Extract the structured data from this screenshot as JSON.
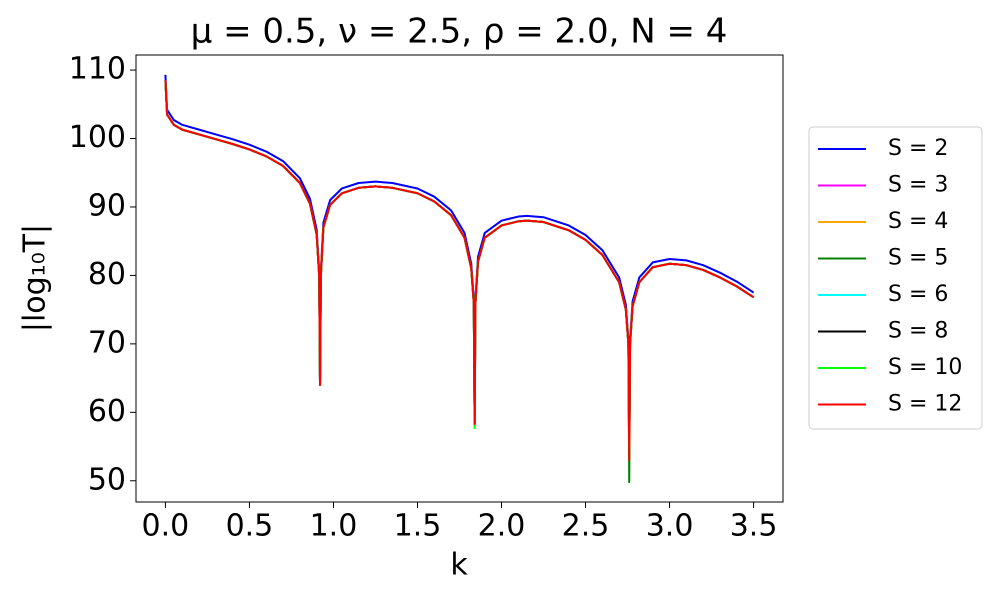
{
  "chart_data": {
    "type": "line",
    "title": "μ = 0.5, ν = 2.5, ρ = 2.0, N = 4",
    "x_label": "k",
    "y_label": "|log₁₀T|",
    "x": [
      0,
      0.01,
      0.05,
      0.1,
      0.2,
      0.3,
      0.4,
      0.5,
      0.6,
      0.7,
      0.8,
      0.86,
      0.9,
      0.915,
      0.92,
      0.925,
      0.94,
      0.98,
      1.05,
      1.15,
      1.25,
      1.35,
      1.5,
      1.6,
      1.7,
      1.78,
      1.82,
      1.835,
      1.84,
      1.845,
      1.86,
      1.9,
      2.0,
      2.1,
      2.15,
      2.25,
      2.4,
      2.5,
      2.6,
      2.7,
      2.74,
      2.755,
      2.76,
      2.765,
      2.78,
      2.82,
      2.9,
      3.0,
      3.1,
      3.2,
      3.3,
      3.4,
      3.5
    ],
    "series": [
      {
        "name": "S = 2",
        "color": "#0000ff",
        "values": [
          109.3,
          104.2,
          102.7,
          102,
          101.3,
          100.6,
          99.9,
          99.1,
          98.1,
          96.7,
          94.2,
          91.2,
          86.7,
          80.7,
          64.3,
          80.7,
          87.7,
          91,
          92.7,
          93.5,
          93.7,
          93.5,
          92.7,
          91.5,
          89.5,
          86.2,
          81.7,
          76.7,
          58.5,
          76.7,
          82.7,
          86.2,
          88,
          88.6,
          88.7,
          88.5,
          87.3,
          85.9,
          83.7,
          79.7,
          75.7,
          70.7,
          53.5,
          70.7,
          76.2,
          79.7,
          81.9,
          82.4,
          82.2,
          81.5,
          80.4,
          79.1,
          77.5
        ]
      },
      {
        "name": "S = 3",
        "color": "#ff00ff",
        "values": [
          108.5,
          103.5,
          102,
          101.3,
          100.6,
          99.9,
          99.2,
          98.4,
          97.4,
          96,
          93.5,
          90.5,
          86,
          80,
          64,
          80,
          87,
          90.3,
          92,
          92.8,
          93,
          92.8,
          92,
          90.8,
          88.8,
          85.5,
          81,
          76,
          58.3,
          76,
          82,
          85.5,
          87.3,
          87.9,
          88,
          87.8,
          86.6,
          85.2,
          83,
          79,
          75,
          70,
          53,
          70,
          75.5,
          79,
          81.2,
          81.7,
          81.5,
          80.8,
          79.7,
          78.4,
          76.8
        ]
      },
      {
        "name": "S = 4",
        "color": "#ffa500",
        "values": [
          108.5,
          103.5,
          102,
          101.3,
          100.6,
          99.9,
          99.2,
          98.4,
          97.4,
          96,
          93.5,
          90.5,
          86,
          80,
          64,
          80,
          87,
          90.3,
          92,
          92.8,
          93,
          92.8,
          92,
          90.8,
          88.8,
          85.5,
          81,
          76,
          58.3,
          76,
          82,
          85.5,
          87.3,
          87.9,
          88,
          87.8,
          86.6,
          85.2,
          83,
          79,
          75,
          70,
          53,
          70,
          75.5,
          79,
          81.2,
          81.7,
          81.5,
          80.8,
          79.7,
          78.4,
          76.8
        ]
      },
      {
        "name": "S = 5",
        "color": "#008000",
        "values": [
          108.5,
          103.5,
          102,
          101.3,
          100.6,
          99.9,
          99.2,
          98.4,
          97.4,
          96,
          93.5,
          90.5,
          86,
          80,
          64,
          80,
          87,
          90.3,
          92,
          92.8,
          93,
          92.8,
          92,
          90.8,
          88.8,
          85.5,
          81,
          76,
          58.3,
          76,
          82,
          85.5,
          87.3,
          87.9,
          88,
          87.8,
          86.6,
          85.2,
          83,
          79,
          75,
          70,
          49.8,
          70,
          75.5,
          79,
          81.2,
          81.7,
          81.5,
          80.8,
          79.7,
          78.4,
          76.8
        ]
      },
      {
        "name": "S = 6",
        "color": "#00ffff",
        "values": [
          108.5,
          103.5,
          102,
          101.3,
          100.6,
          99.9,
          99.2,
          98.4,
          97.4,
          96,
          93.5,
          90.5,
          86,
          80,
          64,
          80,
          87,
          90.3,
          92,
          92.8,
          93,
          92.8,
          92,
          90.8,
          88.8,
          85.5,
          81,
          76,
          58.3,
          76,
          82,
          85.5,
          87.3,
          87.9,
          88,
          87.8,
          86.6,
          85.2,
          83,
          79,
          75,
          70,
          53,
          70,
          75.5,
          79,
          81.2,
          81.7,
          81.5,
          80.8,
          79.7,
          78.4,
          76.8
        ]
      },
      {
        "name": "S = 8",
        "color": "#000000",
        "values": [
          108.5,
          103.5,
          102,
          101.3,
          100.6,
          99.9,
          99.2,
          98.4,
          97.4,
          96,
          93.5,
          90.5,
          86,
          80,
          64,
          80,
          87,
          90.3,
          92,
          92.8,
          93,
          92.8,
          92,
          90.8,
          88.8,
          85.5,
          81,
          76,
          58.3,
          76,
          82,
          85.5,
          87.3,
          87.9,
          88,
          87.8,
          86.6,
          85.2,
          83,
          79,
          75,
          70,
          53,
          70,
          75.5,
          79,
          81.2,
          81.7,
          81.5,
          80.8,
          79.7,
          78.4,
          76.8
        ]
      },
      {
        "name": "S = 10",
        "color": "#00ff00",
        "values": [
          108.5,
          103.5,
          102,
          101.3,
          100.6,
          99.9,
          99.2,
          98.4,
          97.4,
          96,
          93.5,
          90.5,
          86,
          80,
          64,
          80,
          87,
          90.3,
          92,
          92.8,
          93,
          92.8,
          92,
          90.8,
          88.8,
          85.5,
          81,
          76,
          57.7,
          76,
          82,
          85.5,
          87.3,
          87.9,
          88,
          87.8,
          86.6,
          85.2,
          83,
          79,
          75,
          70,
          53,
          70,
          75.5,
          79,
          81.2,
          81.7,
          81.5,
          80.8,
          79.7,
          78.4,
          76.8
        ]
      },
      {
        "name": "S = 12",
        "color": "#ff0000",
        "values": [
          108.5,
          103.5,
          102,
          101.3,
          100.6,
          99.9,
          99.2,
          98.4,
          97.4,
          96,
          93.5,
          90.5,
          86,
          80,
          64,
          80,
          87,
          90.3,
          92,
          92.8,
          93,
          92.8,
          92,
          90.8,
          88.8,
          85.5,
          81,
          76,
          58.3,
          76,
          82,
          85.5,
          87.3,
          87.9,
          88,
          87.8,
          86.6,
          85.2,
          83,
          79,
          75,
          70,
          53,
          70,
          75.5,
          79,
          81.2,
          81.7,
          81.5,
          80.8,
          79.7,
          78.4,
          76.8
        ]
      }
    ],
    "xlim": [
      -0.175,
      3.675
    ],
    "ylim": [
      46.9,
      112.2
    ],
    "xticks": [
      {
        "value": 0,
        "label": "0.0"
      },
      0.5,
      {
        "value": 1,
        "label": "1.0"
      },
      1.5,
      {
        "value": 2,
        "label": "2.0"
      },
      2.5,
      {
        "value": 3,
        "label": "3.0"
      },
      3.5
    ],
    "yticks": [
      50,
      60,
      70,
      80,
      90,
      100,
      110
    ],
    "grid": false,
    "legend": "right"
  }
}
